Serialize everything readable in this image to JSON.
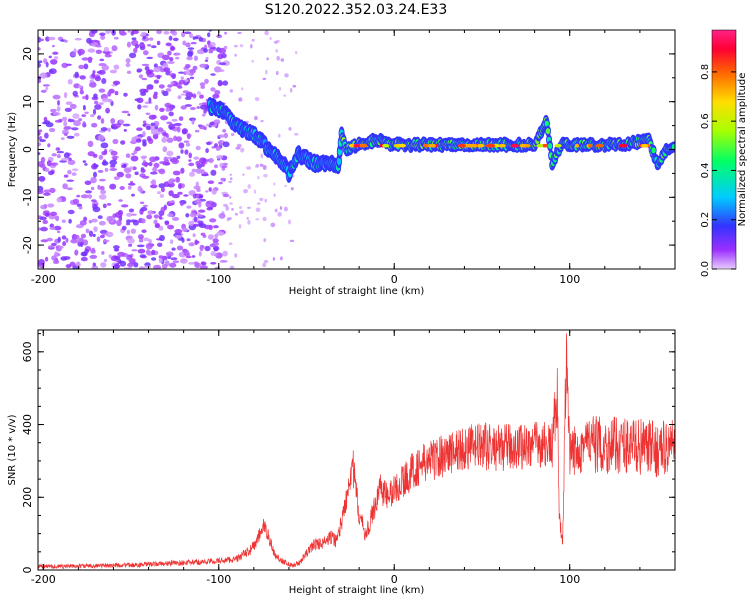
{
  "title": "S120.2022.352.03.24.E33",
  "chart_data": [
    {
      "type": "heatmap",
      "xlabel": "Height of straight line (km)",
      "ylabel": "Frequency (Hz)",
      "xlim": [
        -203,
        160
      ],
      "ylim": [
        -25,
        25
      ],
      "xticks": [
        -200,
        -100,
        0,
        100
      ],
      "yticks": [
        20,
        10,
        0,
        -10,
        -20
      ],
      "colorbar": {
        "label": "Normalized spectral amplitude",
        "range": [
          0,
          0.97
        ],
        "ticks": [
          0.0,
          0.2,
          0.4,
          0.6,
          0.8
        ]
      },
      "ridge": [
        {
          "x": -105,
          "y": 9
        },
        {
          "x": -97,
          "y": 8
        },
        {
          "x": -93,
          "y": 6
        },
        {
          "x": -90,
          "y": 5
        },
        {
          "x": -86,
          "y": 4
        },
        {
          "x": -80,
          "y": 3
        },
        {
          "x": -76,
          "y": 2
        },
        {
          "x": -72,
          "y": 0
        },
        {
          "x": -68,
          "y": -1
        },
        {
          "x": -63,
          "y": -3
        },
        {
          "x": -60,
          "y": -5
        },
        {
          "x": -55,
          "y": -1
        },
        {
          "x": -50,
          "y": -2
        },
        {
          "x": -45,
          "y": -3
        },
        {
          "x": -40,
          "y": -3
        },
        {
          "x": -35,
          "y": -3
        },
        {
          "x": -32,
          "y": -4
        },
        {
          "x": -30,
          "y": 3
        },
        {
          "x": -27,
          "y": 0
        },
        {
          "x": -20,
          "y": 1
        },
        {
          "x": -10,
          "y": 2
        },
        {
          "x": 0,
          "y": 1
        },
        {
          "x": 20,
          "y": 1
        },
        {
          "x": 40,
          "y": 1
        },
        {
          "x": 60,
          "y": 1
        },
        {
          "x": 80,
          "y": 1
        },
        {
          "x": 87,
          "y": 6
        },
        {
          "x": 90,
          "y": -3
        },
        {
          "x": 95,
          "y": 1
        },
        {
          "x": 110,
          "y": 1
        },
        {
          "x": 130,
          "y": 1
        },
        {
          "x": 145,
          "y": 2
        },
        {
          "x": 150,
          "y": -3
        },
        {
          "x": 155,
          "y": 0
        },
        {
          "x": 160,
          "y": 1
        }
      ]
    },
    {
      "type": "line",
      "xlabel": "Height of straight line (km)",
      "ylabel": "SNR (10 * v/v)",
      "xlim": [
        -203,
        160
      ],
      "ylim": [
        0,
        660
      ],
      "xticks": [
        -200,
        -100,
        0,
        100
      ],
      "yticks": [
        0,
        200,
        400,
        600
      ],
      "series": [
        {
          "color": "#ee3333",
          "values": [
            {
              "x": -203,
              "y": 10
            },
            {
              "x": -190,
              "y": 10
            },
            {
              "x": -175,
              "y": 11
            },
            {
              "x": -160,
              "y": 13
            },
            {
              "x": -145,
              "y": 14
            },
            {
              "x": -130,
              "y": 18
            },
            {
              "x": -120,
              "y": 20
            },
            {
              "x": -110,
              "y": 22
            },
            {
              "x": -100,
              "y": 25
            },
            {
              "x": -90,
              "y": 30
            },
            {
              "x": -82,
              "y": 55
            },
            {
              "x": -78,
              "y": 80
            },
            {
              "x": -75,
              "y": 120
            },
            {
              "x": -72,
              "y": 100
            },
            {
              "x": -68,
              "y": 40
            },
            {
              "x": -62,
              "y": 20
            },
            {
              "x": -58,
              "y": 12
            },
            {
              "x": -54,
              "y": 20
            },
            {
              "x": -50,
              "y": 45
            },
            {
              "x": -46,
              "y": 70
            },
            {
              "x": -40,
              "y": 75
            },
            {
              "x": -36,
              "y": 90
            },
            {
              "x": -33,
              "y": 80
            },
            {
              "x": -29,
              "y": 150
            },
            {
              "x": -24,
              "y": 300
            },
            {
              "x": -20,
              "y": 150
            },
            {
              "x": -16,
              "y": 95
            },
            {
              "x": -12,
              "y": 160
            },
            {
              "x": -8,
              "y": 230
            },
            {
              "x": -4,
              "y": 200
            },
            {
              "x": 0,
              "y": 220
            },
            {
              "x": 6,
              "y": 250
            },
            {
              "x": 12,
              "y": 280
            },
            {
              "x": 20,
              "y": 300
            },
            {
              "x": 30,
              "y": 320
            },
            {
              "x": 40,
              "y": 335
            },
            {
              "x": 50,
              "y": 340
            },
            {
              "x": 60,
              "y": 335
            },
            {
              "x": 70,
              "y": 340
            },
            {
              "x": 80,
              "y": 345
            },
            {
              "x": 85,
              "y": 345
            },
            {
              "x": 90,
              "y": 340
            },
            {
              "x": 93,
              "y": 500
            },
            {
              "x": 94,
              "y": 140
            },
            {
              "x": 96,
              "y": 70
            },
            {
              "x": 98,
              "y": 600
            },
            {
              "x": 100,
              "y": 300
            },
            {
              "x": 104,
              "y": 340
            },
            {
              "x": 110,
              "y": 350
            },
            {
              "x": 120,
              "y": 340
            },
            {
              "x": 130,
              "y": 345
            },
            {
              "x": 140,
              "y": 340
            },
            {
              "x": 150,
              "y": 330
            },
            {
              "x": 160,
              "y": 345
            }
          ]
        }
      ]
    }
  ]
}
